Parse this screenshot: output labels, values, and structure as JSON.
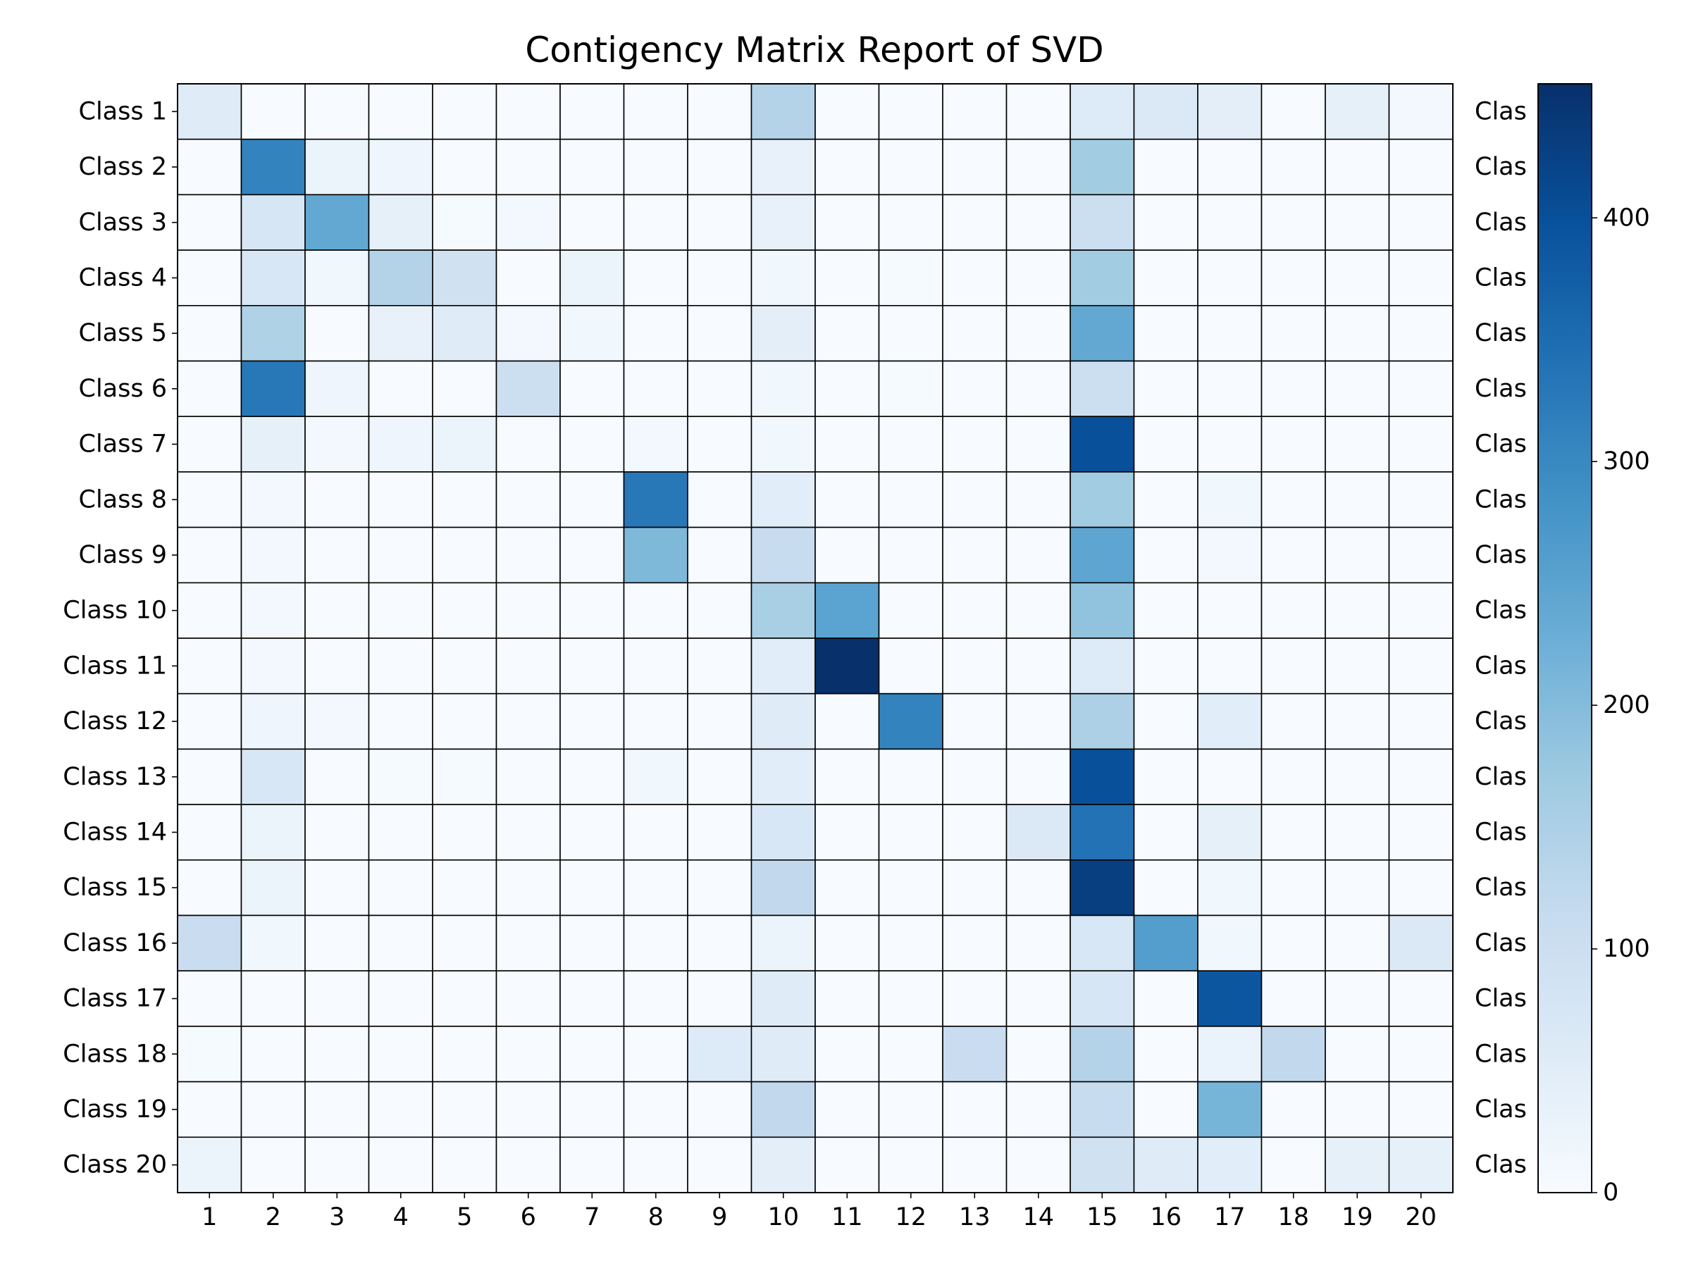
{
  "chart_data": {
    "type": "heatmap",
    "title": "Contigency Matrix Report of SVD",
    "xlabel": "",
    "ylabel": "",
    "row_labels": [
      "Class 1",
      "Class 2",
      "Class 3",
      "Class 4",
      "Class 5",
      "Class 6",
      "Class 7",
      "Class 8",
      "Class 9",
      "Class 10",
      "Class 11",
      "Class 12",
      "Class 13",
      "Class 14",
      "Class 15",
      "Class 16",
      "Class 17",
      "Class 18",
      "Class 19",
      "Class 20"
    ],
    "right_labels_visible": [
      "Clas",
      "Clas",
      "Clas",
      "Clas",
      "Clas",
      "Clas",
      "Clas",
      "Clas",
      "Clas",
      "Clas",
      "Clas",
      "Clas",
      "Clas",
      "Clas",
      "Clas",
      "Clas",
      "Clas",
      "Clas",
      "Clas",
      "Clas"
    ],
    "col_labels": [
      "1",
      "2",
      "3",
      "4",
      "5",
      "6",
      "7",
      "8",
      "9",
      "10",
      "11",
      "12",
      "13",
      "14",
      "15",
      "16",
      "17",
      "18",
      "19",
      "20"
    ],
    "values": [
      [
        55,
        0,
        0,
        0,
        0,
        0,
        0,
        0,
        0,
        140,
        0,
        0,
        0,
        0,
        60,
        65,
        45,
        0,
        40,
        10
      ],
      [
        0,
        310,
        25,
        20,
        0,
        0,
        0,
        0,
        0,
        35,
        0,
        0,
        0,
        0,
        165,
        0,
        0,
        0,
        0,
        0
      ],
      [
        0,
        75,
        240,
        40,
        5,
        10,
        0,
        0,
        0,
        35,
        0,
        0,
        0,
        0,
        100,
        0,
        0,
        0,
        0,
        0
      ],
      [
        0,
        70,
        15,
        140,
        90,
        0,
        25,
        0,
        0,
        15,
        0,
        5,
        0,
        0,
        165,
        0,
        0,
        0,
        0,
        0
      ],
      [
        0,
        145,
        0,
        35,
        55,
        10,
        15,
        0,
        0,
        45,
        0,
        0,
        0,
        0,
        240,
        0,
        0,
        0,
        0,
        0
      ],
      [
        0,
        330,
        20,
        0,
        0,
        100,
        0,
        0,
        0,
        15,
        0,
        5,
        0,
        0,
        100,
        0,
        0,
        0,
        0,
        0
      ],
      [
        0,
        40,
        10,
        20,
        25,
        0,
        0,
        10,
        0,
        15,
        0,
        0,
        0,
        0,
        400,
        0,
        0,
        0,
        0,
        0
      ],
      [
        0,
        10,
        0,
        0,
        0,
        0,
        0,
        330,
        0,
        50,
        0,
        0,
        0,
        0,
        165,
        0,
        15,
        0,
        0,
        0
      ],
      [
        0,
        10,
        0,
        0,
        0,
        0,
        0,
        205,
        0,
        110,
        0,
        0,
        0,
        0,
        245,
        0,
        10,
        0,
        0,
        0
      ],
      [
        0,
        10,
        0,
        0,
        0,
        0,
        0,
        0,
        0,
        155,
        250,
        0,
        0,
        0,
        185,
        0,
        0,
        0,
        0,
        0
      ],
      [
        0,
        10,
        0,
        0,
        0,
        0,
        0,
        0,
        0,
        50,
        455,
        0,
        0,
        0,
        60,
        0,
        0,
        0,
        0,
        0
      ],
      [
        0,
        20,
        10,
        0,
        0,
        0,
        0,
        0,
        0,
        55,
        0,
        310,
        0,
        0,
        150,
        0,
        50,
        0,
        0,
        0
      ],
      [
        0,
        70,
        0,
        5,
        5,
        0,
        0,
        15,
        0,
        50,
        0,
        0,
        0,
        0,
        400,
        0,
        0,
        0,
        0,
        0
      ],
      [
        0,
        25,
        0,
        0,
        0,
        0,
        0,
        0,
        0,
        70,
        0,
        0,
        0,
        65,
        340,
        0,
        40,
        0,
        0,
        0
      ],
      [
        0,
        25,
        0,
        0,
        0,
        0,
        0,
        0,
        0,
        120,
        0,
        0,
        0,
        0,
        430,
        0,
        15,
        0,
        0,
        0
      ],
      [
        105,
        15,
        0,
        0,
        0,
        0,
        0,
        0,
        0,
        25,
        0,
        0,
        0,
        0,
        70,
        260,
        15,
        0,
        0,
        65
      ],
      [
        0,
        0,
        0,
        0,
        0,
        0,
        0,
        0,
        0,
        55,
        0,
        0,
        0,
        0,
        75,
        0,
        390,
        0,
        0,
        0
      ],
      [
        5,
        0,
        0,
        0,
        0,
        0,
        0,
        0,
        60,
        55,
        0,
        0,
        105,
        0,
        140,
        0,
        30,
        120,
        0,
        0
      ],
      [
        0,
        0,
        0,
        0,
        0,
        0,
        0,
        0,
        0,
        120,
        0,
        0,
        0,
        0,
        110,
        0,
        215,
        0,
        0,
        0
      ],
      [
        25,
        0,
        0,
        0,
        0,
        0,
        0,
        0,
        0,
        45,
        0,
        0,
        0,
        0,
        90,
        55,
        50,
        0,
        40,
        40
      ]
    ],
    "vmin": 0,
    "vmax": 455,
    "colormap": [
      "#f7fbff",
      "#deebf7",
      "#c6dbef",
      "#9ecae1",
      "#6baed6",
      "#4292c6",
      "#2171b5",
      "#08519c",
      "#08306b"
    ],
    "colorbar_ticks": [
      0,
      100,
      200,
      300,
      400
    ],
    "grid": true,
    "cell_border_color": "#000000"
  }
}
